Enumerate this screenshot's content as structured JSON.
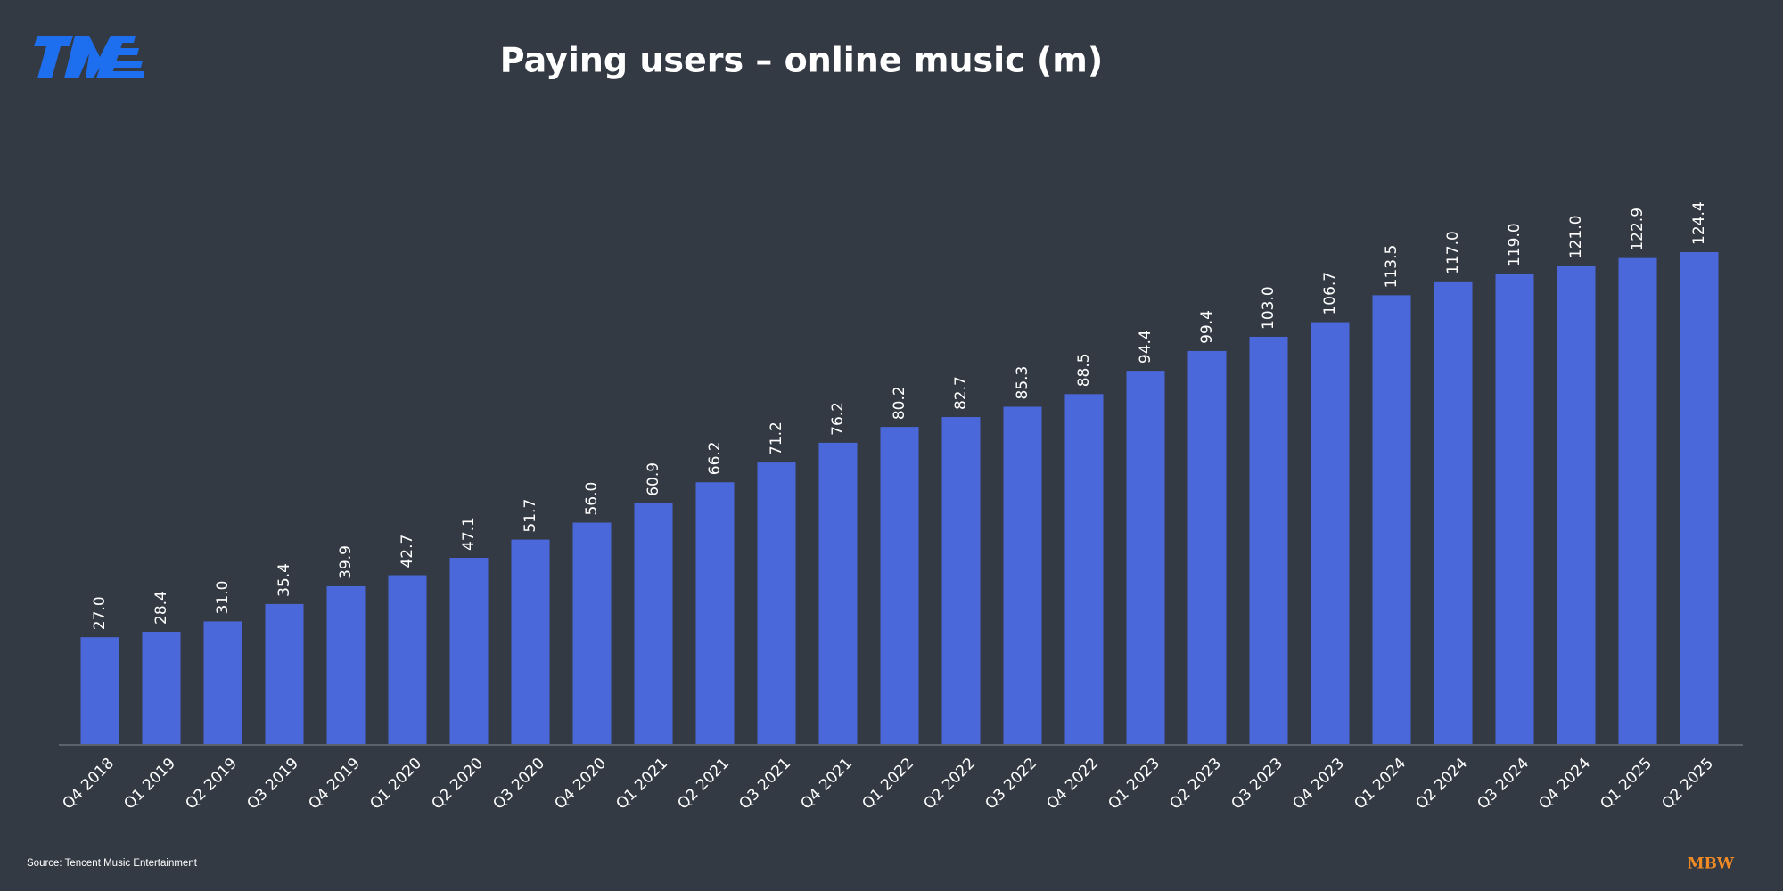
{
  "chart_data": {
    "type": "bar",
    "title": "Paying users – online music (m)",
    "categories": [
      "Q4 2018",
      "Q1 2019",
      "Q2 2019",
      "Q3 2019",
      "Q4 2019",
      "Q1 2020",
      "Q2 2020",
      "Q3 2020",
      "Q4 2020",
      "Q1 2021",
      "Q2 2021",
      "Q3 2021",
      "Q4 2021",
      "Q1 2022",
      "Q2 2022",
      "Q3 2022",
      "Q4 2022",
      "Q1 2023",
      "Q2 2023",
      "Q3 2023",
      "Q4 2023",
      "Q1 2024",
      "Q2 2024",
      "Q3 2024",
      "Q4 2024",
      "Q1 2025",
      "Q2 2025"
    ],
    "values": [
      27.0,
      28.4,
      31.0,
      35.4,
      39.9,
      42.7,
      47.1,
      51.7,
      56.0,
      60.9,
      66.2,
      71.2,
      76.2,
      80.2,
      82.7,
      85.3,
      88.5,
      94.4,
      99.4,
      103.0,
      106.7,
      113.5,
      117.0,
      119.0,
      121.0,
      122.9,
      124.4
    ],
    "value_labels": [
      "27.0",
      "28.4",
      "31.0",
      "35.4",
      "39.9",
      "42.7",
      "47.1",
      "51.7",
      "56.0",
      "60.9",
      "66.2",
      "71.2",
      "76.2",
      "80.2",
      "82.7",
      "85.3",
      "88.5",
      "94.4",
      "99.4",
      "103.0",
      "106.7",
      "113.5",
      "117.0",
      "119.0",
      "121.0",
      "122.9",
      "124.4"
    ],
    "color": "#4a68d9",
    "source": "Source: Tencent Music Entertainment",
    "brand": "MBW"
  }
}
